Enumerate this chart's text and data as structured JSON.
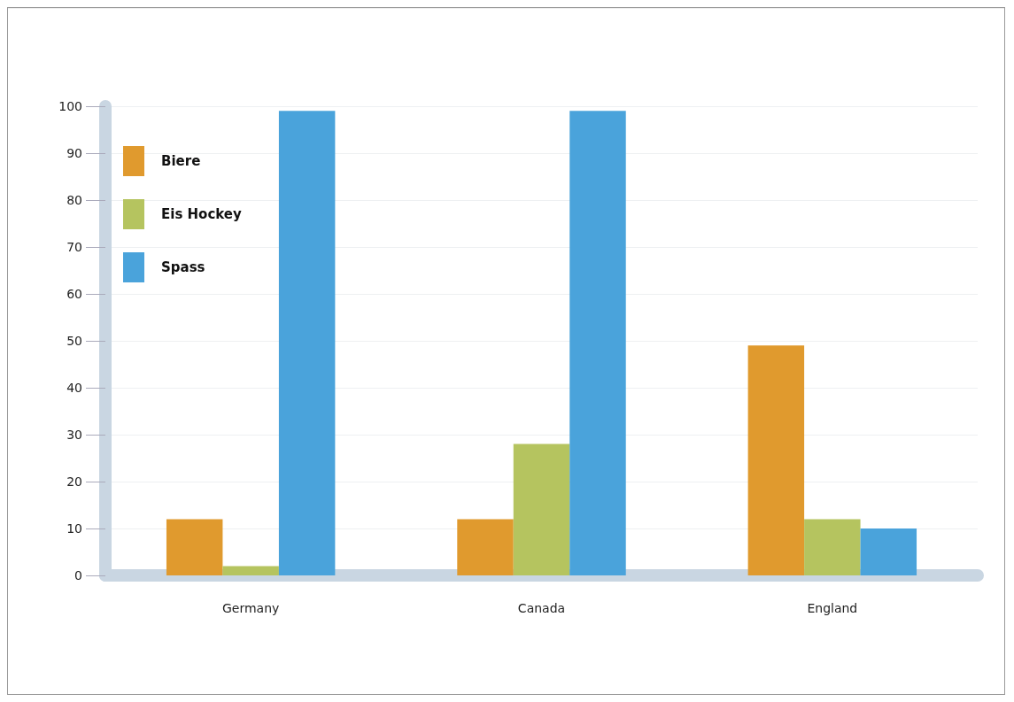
{
  "chart_data": {
    "type": "bar",
    "categories": [
      "Germany",
      "Canada",
      "England"
    ],
    "series": [
      {
        "name": "Biere",
        "color": "#e09a2e",
        "values": [
          12,
          12,
          49
        ]
      },
      {
        "name": "Eis Hockey",
        "color": "#b5c45f",
        "values": [
          2,
          28,
          12
        ]
      },
      {
        "name": "Spass",
        "color": "#4aa3db",
        "values": [
          99,
          99,
          10
        ]
      }
    ],
    "ylim": [
      0,
      100
    ],
    "yticks": [
      0,
      10,
      20,
      30,
      40,
      50,
      60,
      70,
      80,
      90,
      100
    ],
    "grid": "y",
    "legend": "top left"
  }
}
